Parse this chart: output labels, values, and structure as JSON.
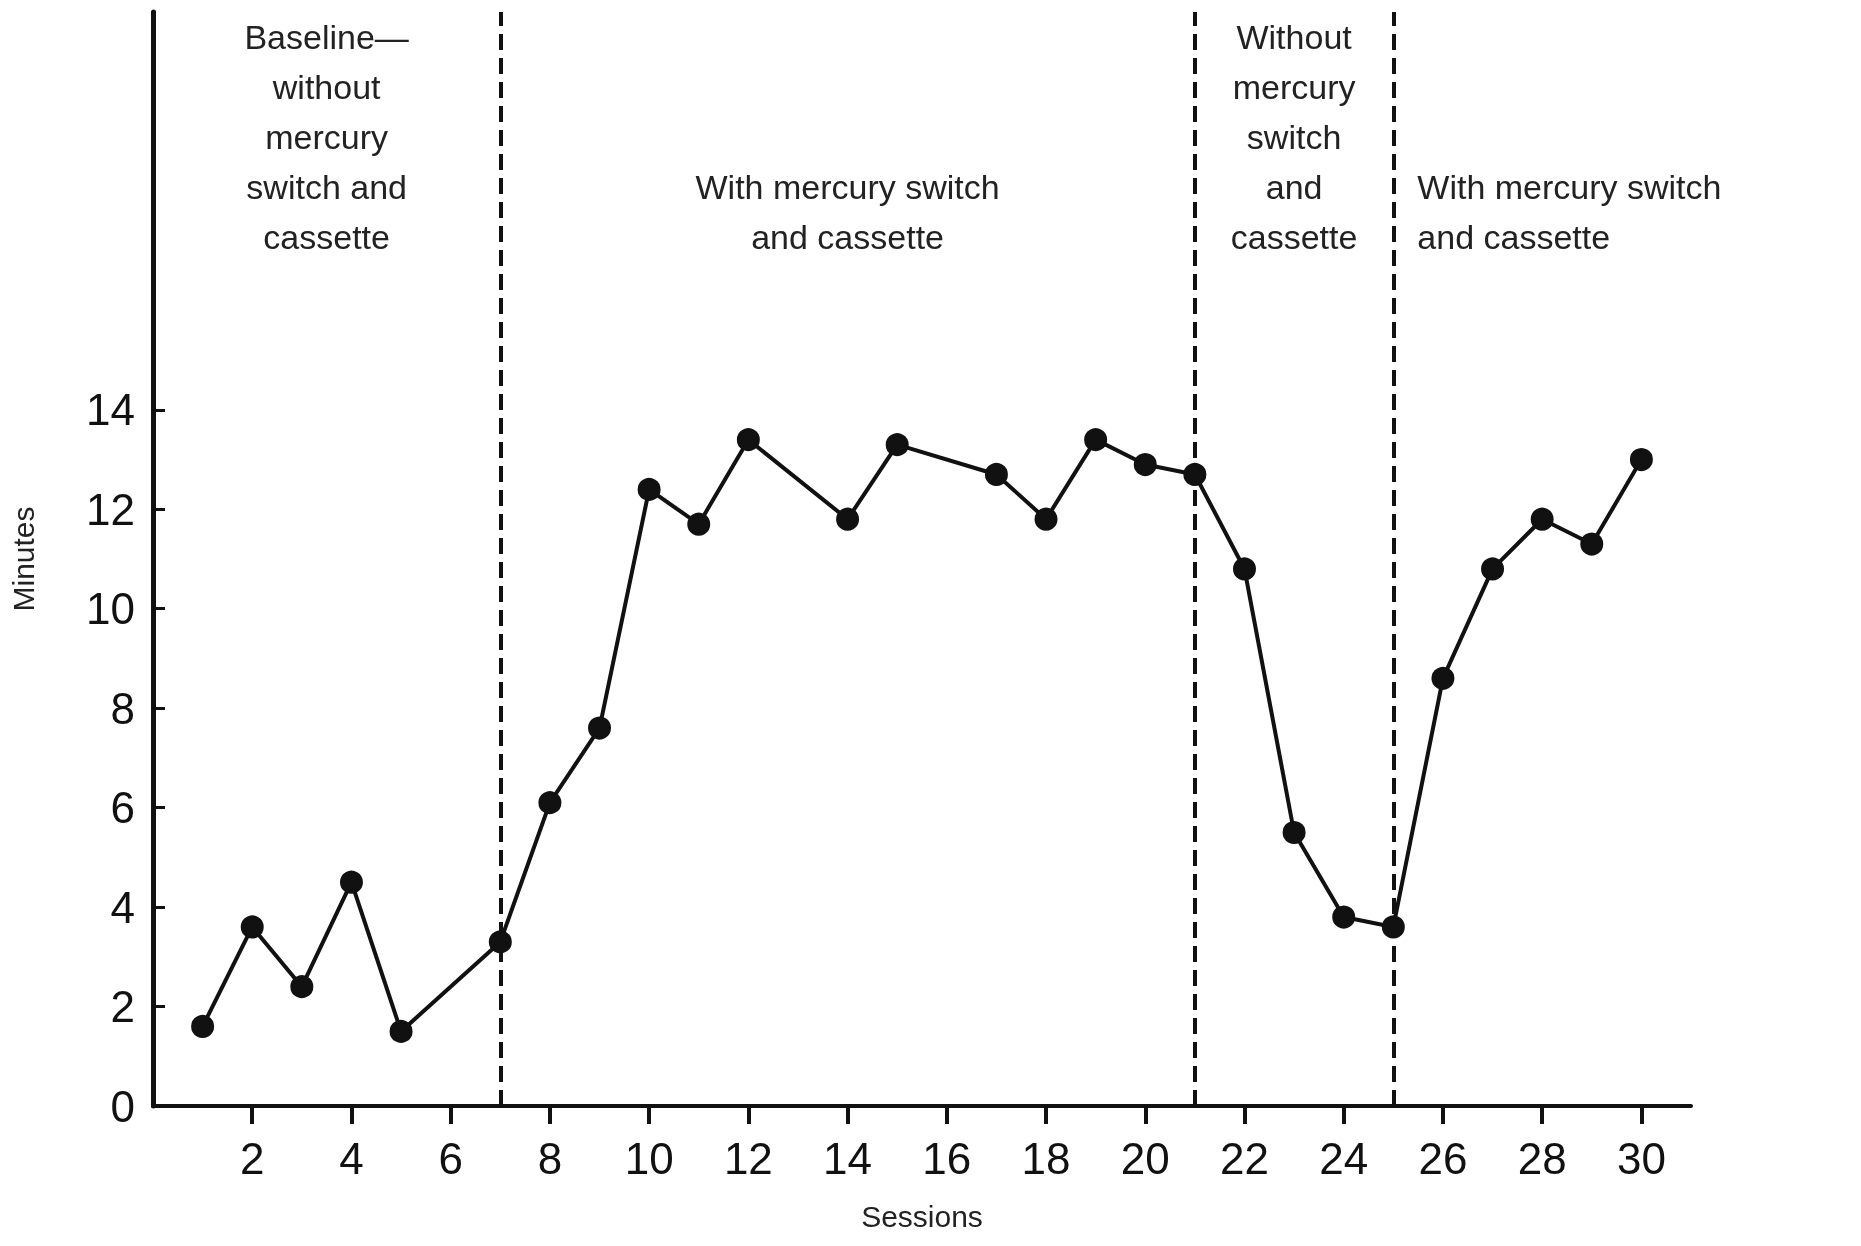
{
  "chart_data": {
    "type": "line",
    "xlabel": "Sessions",
    "ylabel": "Minutes",
    "x": [
      1,
      2,
      3,
      4,
      5,
      7,
      8,
      9,
      10,
      11,
      12,
      14,
      15,
      17,
      18,
      19,
      20,
      21,
      22,
      23,
      24,
      25,
      26,
      27,
      28,
      29,
      30
    ],
    "series": [
      {
        "color": "#111111",
        "values": [
          1.6,
          3.6,
          2.4,
          4.5,
          1.5,
          3.3,
          6.1,
          7.6,
          12.4,
          11.7,
          13.4,
          11.8,
          13.3,
          12.7,
          11.8,
          13.4,
          12.9,
          12.7,
          10.8,
          5.5,
          3.8,
          3.6,
          8.6,
          10.8,
          11.8,
          11.3,
          13.0
        ]
      }
    ],
    "xlim": [
      0,
      31
    ],
    "xticks": [
      2,
      4,
      6,
      8,
      10,
      12,
      14,
      16,
      18,
      20,
      22,
      24,
      26,
      28,
      30
    ],
    "ylim": [
      0,
      22
    ],
    "yticks": [
      0,
      2,
      4,
      6,
      8,
      10,
      12,
      14
    ],
    "ref_lines": [
      {
        "axis": "x",
        "value": 7,
        "line_style": "dashed",
        "color": "#111111"
      },
      {
        "axis": "x",
        "value": 21,
        "line_style": "dashed",
        "color": "#111111"
      },
      {
        "axis": "x",
        "value": 25,
        "line_style": "dashed",
        "color": "#111111"
      }
    ],
    "annotations": [
      "Baseline—\nwithout\nmercury\nswitch and\ncassette",
      "With mercury switch\nand cassette",
      "Without\nmercury\nswitch\nand\ncassette",
      "With mercury switch\nand cassette"
    ],
    "marker": "circle",
    "line_style": "solid"
  }
}
